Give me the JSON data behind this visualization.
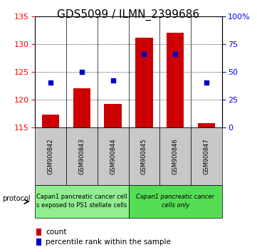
{
  "title": "GDS5099 / ILMN_2399686",
  "samples": [
    "GSM900842",
    "GSM900843",
    "GSM900844",
    "GSM900845",
    "GSM900846",
    "GSM900847"
  ],
  "bar_values": [
    117.3,
    122.0,
    119.2,
    131.2,
    132.0,
    115.8
  ],
  "bar_bottom": 115,
  "percentile_values": [
    40,
    50,
    42,
    66,
    66,
    40
  ],
  "ylim_left": [
    115,
    135
  ],
  "ylim_right": [
    0,
    100
  ],
  "yticks_left": [
    115,
    120,
    125,
    130,
    135
  ],
  "ytick_labels_right": [
    "0",
    "25",
    "50",
    "75",
    "100%"
  ],
  "yticks_right": [
    0,
    25,
    50,
    75,
    100
  ],
  "bar_color": "#cc0000",
  "percentile_color": "#0000cc",
  "group1_label_line1": "Capan1 pancreatic cancer cell",
  "group1_label_line2": "s exposed to PS1 stellate cells",
  "group2_label_line1": "Capan1 pancreatic cancer",
  "group2_label_line2": "cells only",
  "group1_color": "#90ee90",
  "group2_color": "#55dd55",
  "xtick_bg_color": "#c8c8c8",
  "title_fontsize": 11,
  "tick_fontsize": 8,
  "small_fontsize": 6,
  "legend_fontsize": 7.5,
  "proto_fontsize": 6
}
